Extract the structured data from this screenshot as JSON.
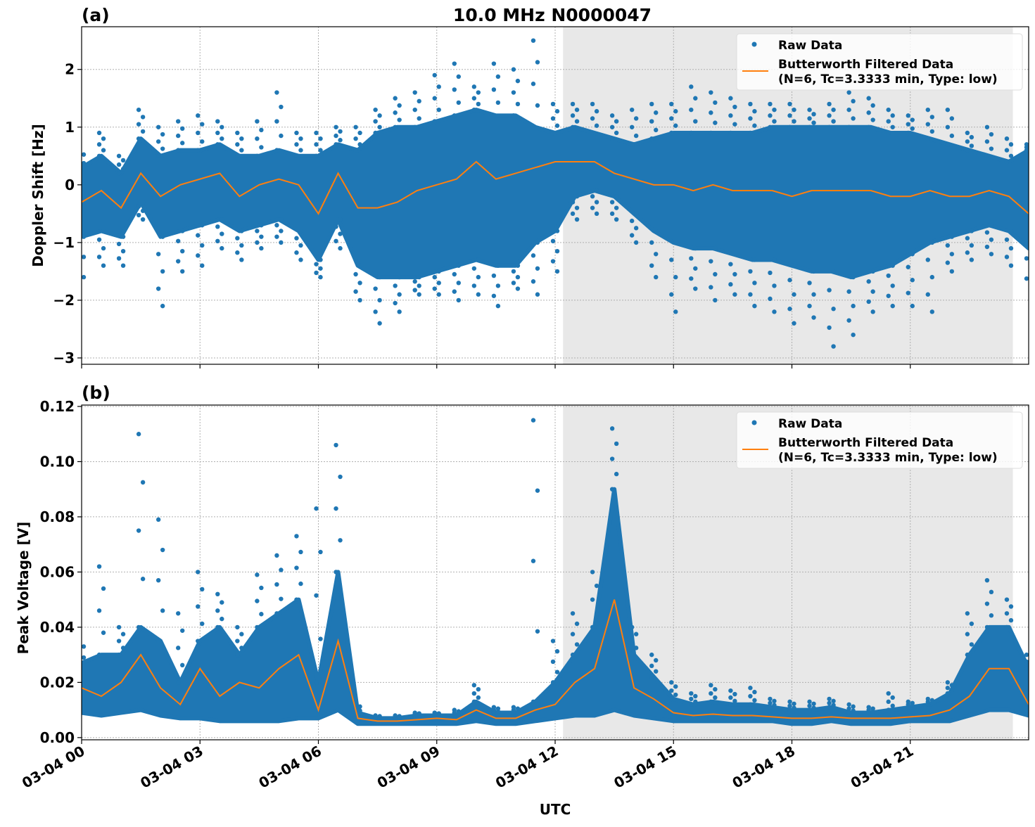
{
  "title": "10.0 MHz N0000047",
  "xlabel": "UTC",
  "x_tick_labels": [
    "03-04 00",
    "03-04 03",
    "03-04 06",
    "03-04 09",
    "03-04 12",
    "03-04 15",
    "03-04 18",
    "03-04 21"
  ],
  "colors": {
    "raw": "#1f77b4",
    "filtered": "#ff7f0e",
    "shade": "#e8e8e8",
    "grid": "#b0b0b0"
  },
  "chart_data": [
    {
      "type": "scatter",
      "panel_label": "(a)",
      "ylabel": "Doppler Shift [Hz]",
      "x_unit": "hours UTC since 03-04 00",
      "xlim": [
        0,
        24
      ],
      "ylim": [
        -3.11,
        2.74
      ],
      "yticks": [
        2,
        1,
        0,
        -1,
        -2,
        -3
      ],
      "ytick_labels": [
        "2",
        "1",
        "0",
        "−1",
        "−2",
        "−3"
      ],
      "grid": true,
      "shaded_interval": [
        12.2,
        23.6
      ],
      "legend": {
        "placement": "top-right",
        "entries": [
          "Raw Data",
          "Butterworth Filtered Data",
          "(N=6, Tc=3.3333 min, Type: low)"
        ]
      },
      "x": [
        0,
        0.5,
        1,
        1.5,
        2,
        2.5,
        3,
        3.5,
        4,
        4.5,
        5,
        5.5,
        6,
        6.5,
        7,
        7.5,
        8,
        8.5,
        9,
        9.5,
        10,
        10.5,
        11,
        11.5,
        12,
        12.5,
        13,
        13.5,
        14,
        14.5,
        15,
        15.5,
        16,
        16.5,
        17,
        17.5,
        18,
        18.5,
        19,
        19.5,
        20,
        20.5,
        21,
        21.5,
        22,
        22.5,
        23,
        23.5,
        24
      ],
      "series": [
        {
          "name": "Butterworth Filtered Data",
          "kind": "line",
          "values": [
            -0.3,
            -0.1,
            -0.4,
            0.2,
            -0.2,
            0.0,
            0.1,
            0.2,
            -0.2,
            0.0,
            0.1,
            0.0,
            -0.5,
            0.2,
            -0.4,
            -0.4,
            -0.3,
            -0.1,
            0.0,
            0.1,
            0.4,
            0.1,
            0.2,
            0.3,
            0.4,
            0.4,
            0.4,
            0.2,
            0.1,
            0.0,
            0.0,
            -0.1,
            0.0,
            -0.1,
            -0.1,
            -0.1,
            -0.2,
            -0.1,
            -0.1,
            -0.1,
            -0.1,
            -0.2,
            -0.2,
            -0.1,
            -0.2,
            -0.2,
            -0.1,
            -0.2,
            -0.5
          ]
        },
        {
          "name": "Raw Data",
          "kind": "scatter",
          "core_low": [
            -0.9,
            -0.8,
            -0.9,
            -0.3,
            -0.9,
            -0.8,
            -0.7,
            -0.6,
            -0.8,
            -0.7,
            -0.6,
            -0.8,
            -1.3,
            -0.6,
            -1.4,
            -1.6,
            -1.6,
            -1.6,
            -1.5,
            -1.4,
            -1.3,
            -1.4,
            -1.4,
            -1.0,
            -0.8,
            -0.2,
            -0.1,
            -0.2,
            -0.5,
            -0.8,
            -1.0,
            -1.1,
            -1.1,
            -1.2,
            -1.3,
            -1.3,
            -1.4,
            -1.5,
            -1.5,
            -1.6,
            -1.5,
            -1.4,
            -1.2,
            -1.0,
            -0.9,
            -0.8,
            -0.7,
            -0.8,
            -1.1
          ],
          "core_high": [
            0.3,
            0.5,
            0.2,
            0.8,
            0.5,
            0.6,
            0.6,
            0.7,
            0.5,
            0.5,
            0.6,
            0.5,
            0.5,
            0.7,
            0.6,
            0.9,
            1.0,
            1.0,
            1.1,
            1.2,
            1.3,
            1.2,
            1.2,
            1.0,
            0.9,
            1.0,
            0.9,
            0.8,
            0.7,
            0.8,
            0.9,
            0.9,
            0.9,
            0.9,
            0.9,
            1.0,
            1.0,
            1.0,
            1.0,
            1.0,
            1.0,
            0.9,
            0.9,
            0.8,
            0.7,
            0.6,
            0.5,
            0.4,
            0.6
          ],
          "min": [
            -1.6,
            -1.4,
            -1.4,
            -0.6,
            -2.1,
            -1.5,
            -1.4,
            -1.1,
            -1.3,
            -1.1,
            -1.0,
            -1.3,
            -1.6,
            -1.1,
            -2.0,
            -2.4,
            -2.2,
            -1.9,
            -1.9,
            -2.0,
            -1.9,
            -2.1,
            -1.8,
            -1.9,
            -1.5,
            -0.6,
            -0.5,
            -0.6,
            -1.0,
            -1.6,
            -2.2,
            -1.8,
            -2.0,
            -1.9,
            -2.1,
            -2.2,
            -2.4,
            -2.3,
            -2.8,
            -2.6,
            -2.2,
            -2.1,
            -2.1,
            -2.2,
            -1.5,
            -1.3,
            -1.2,
            -1.4,
            -1.8
          ],
          "max": [
            0.6,
            0.9,
            0.5,
            1.3,
            1.0,
            1.1,
            1.2,
            1.1,
            0.9,
            1.1,
            1.6,
            0.9,
            0.9,
            1.0,
            1.0,
            1.3,
            1.5,
            1.6,
            1.9,
            2.1,
            1.7,
            2.1,
            2.0,
            2.5,
            1.4,
            1.4,
            1.4,
            1.2,
            1.3,
            1.4,
            1.4,
            1.7,
            1.6,
            1.5,
            1.4,
            1.4,
            1.4,
            1.3,
            1.4,
            1.6,
            1.5,
            1.3,
            1.2,
            1.3,
            1.3,
            0.9,
            1.0,
            0.8,
            0.7
          ]
        }
      ]
    },
    {
      "type": "scatter",
      "panel_label": "(b)",
      "ylabel": "Peak Voltage [V]",
      "x_unit": "hours UTC since 03-04 00",
      "xlim": [
        0,
        24
      ],
      "ylim": [
        -0.0008,
        0.1205
      ],
      "yticks": [
        0.12,
        0.1,
        0.08,
        0.06,
        0.04,
        0.02,
        0.0
      ],
      "ytick_labels": [
        "0.12",
        "0.10",
        "0.08",
        "0.06",
        "0.04",
        "0.02",
        "0.00"
      ],
      "grid": true,
      "shaded_interval": [
        12.2,
        23.6
      ],
      "legend": {
        "placement": "top-right",
        "entries": [
          "Raw Data",
          "Butterworth Filtered Data",
          "(N=6, Tc=3.3333 min, Type: low)"
        ]
      },
      "x": [
        0,
        0.5,
        1,
        1.5,
        2,
        2.5,
        3,
        3.5,
        4,
        4.5,
        5,
        5.5,
        6,
        6.5,
        7,
        7.5,
        8,
        8.5,
        9,
        9.5,
        10,
        10.5,
        11,
        11.5,
        12,
        12.5,
        13,
        13.5,
        14,
        14.5,
        15,
        15.5,
        16,
        16.5,
        17,
        17.5,
        18,
        18.5,
        19,
        19.5,
        20,
        20.5,
        21,
        21.5,
        22,
        22.5,
        23,
        23.5,
        24
      ],
      "series": [
        {
          "name": "Butterworth Filtered Data",
          "kind": "line",
          "values": [
            0.018,
            0.015,
            0.02,
            0.03,
            0.018,
            0.012,
            0.025,
            0.015,
            0.02,
            0.018,
            0.025,
            0.03,
            0.01,
            0.035,
            0.007,
            0.006,
            0.006,
            0.0065,
            0.007,
            0.0065,
            0.01,
            0.007,
            0.007,
            0.01,
            0.012,
            0.02,
            0.025,
            0.05,
            0.018,
            0.014,
            0.009,
            0.008,
            0.0085,
            0.008,
            0.008,
            0.0075,
            0.007,
            0.007,
            0.0075,
            0.007,
            0.007,
            0.007,
            0.0075,
            0.008,
            0.01,
            0.015,
            0.025,
            0.025,
            0.012
          ]
        },
        {
          "name": "Raw Data",
          "kind": "scatter",
          "core_low": [
            0.009,
            0.008,
            0.009,
            0.01,
            0.008,
            0.007,
            0.007,
            0.006,
            0.006,
            0.006,
            0.006,
            0.007,
            0.007,
            0.01,
            0.005,
            0.005,
            0.005,
            0.005,
            0.005,
            0.005,
            0.006,
            0.005,
            0.005,
            0.006,
            0.007,
            0.008,
            0.008,
            0.01,
            0.008,
            0.007,
            0.006,
            0.006,
            0.006,
            0.006,
            0.006,
            0.006,
            0.005,
            0.005,
            0.006,
            0.005,
            0.005,
            0.005,
            0.006,
            0.006,
            0.006,
            0.008,
            0.01,
            0.01,
            0.008
          ],
          "core_high": [
            0.027,
            0.03,
            0.03,
            0.04,
            0.035,
            0.02,
            0.035,
            0.04,
            0.03,
            0.04,
            0.045,
            0.05,
            0.02,
            0.06,
            0.009,
            0.007,
            0.007,
            0.008,
            0.008,
            0.008,
            0.013,
            0.009,
            0.009,
            0.013,
            0.02,
            0.03,
            0.04,
            0.09,
            0.03,
            0.022,
            0.014,
            0.012,
            0.013,
            0.012,
            0.012,
            0.011,
            0.01,
            0.01,
            0.011,
            0.009,
            0.009,
            0.01,
            0.011,
            0.012,
            0.016,
            0.03,
            0.04,
            0.04,
            0.025
          ],
          "max": [
            0.035,
            0.062,
            0.04,
            0.11,
            0.079,
            0.045,
            0.06,
            0.052,
            0.04,
            0.059,
            0.066,
            0.073,
            0.083,
            0.106,
            0.012,
            0.008,
            0.008,
            0.009,
            0.009,
            0.01,
            0.019,
            0.011,
            0.011,
            0.115,
            0.035,
            0.045,
            0.06,
            0.112,
            0.04,
            0.03,
            0.02,
            0.016,
            0.019,
            0.017,
            0.018,
            0.014,
            0.013,
            0.013,
            0.014,
            0.012,
            0.011,
            0.016,
            0.013,
            0.014,
            0.02,
            0.045,
            0.057,
            0.05,
            0.03
          ]
        }
      ]
    }
  ]
}
